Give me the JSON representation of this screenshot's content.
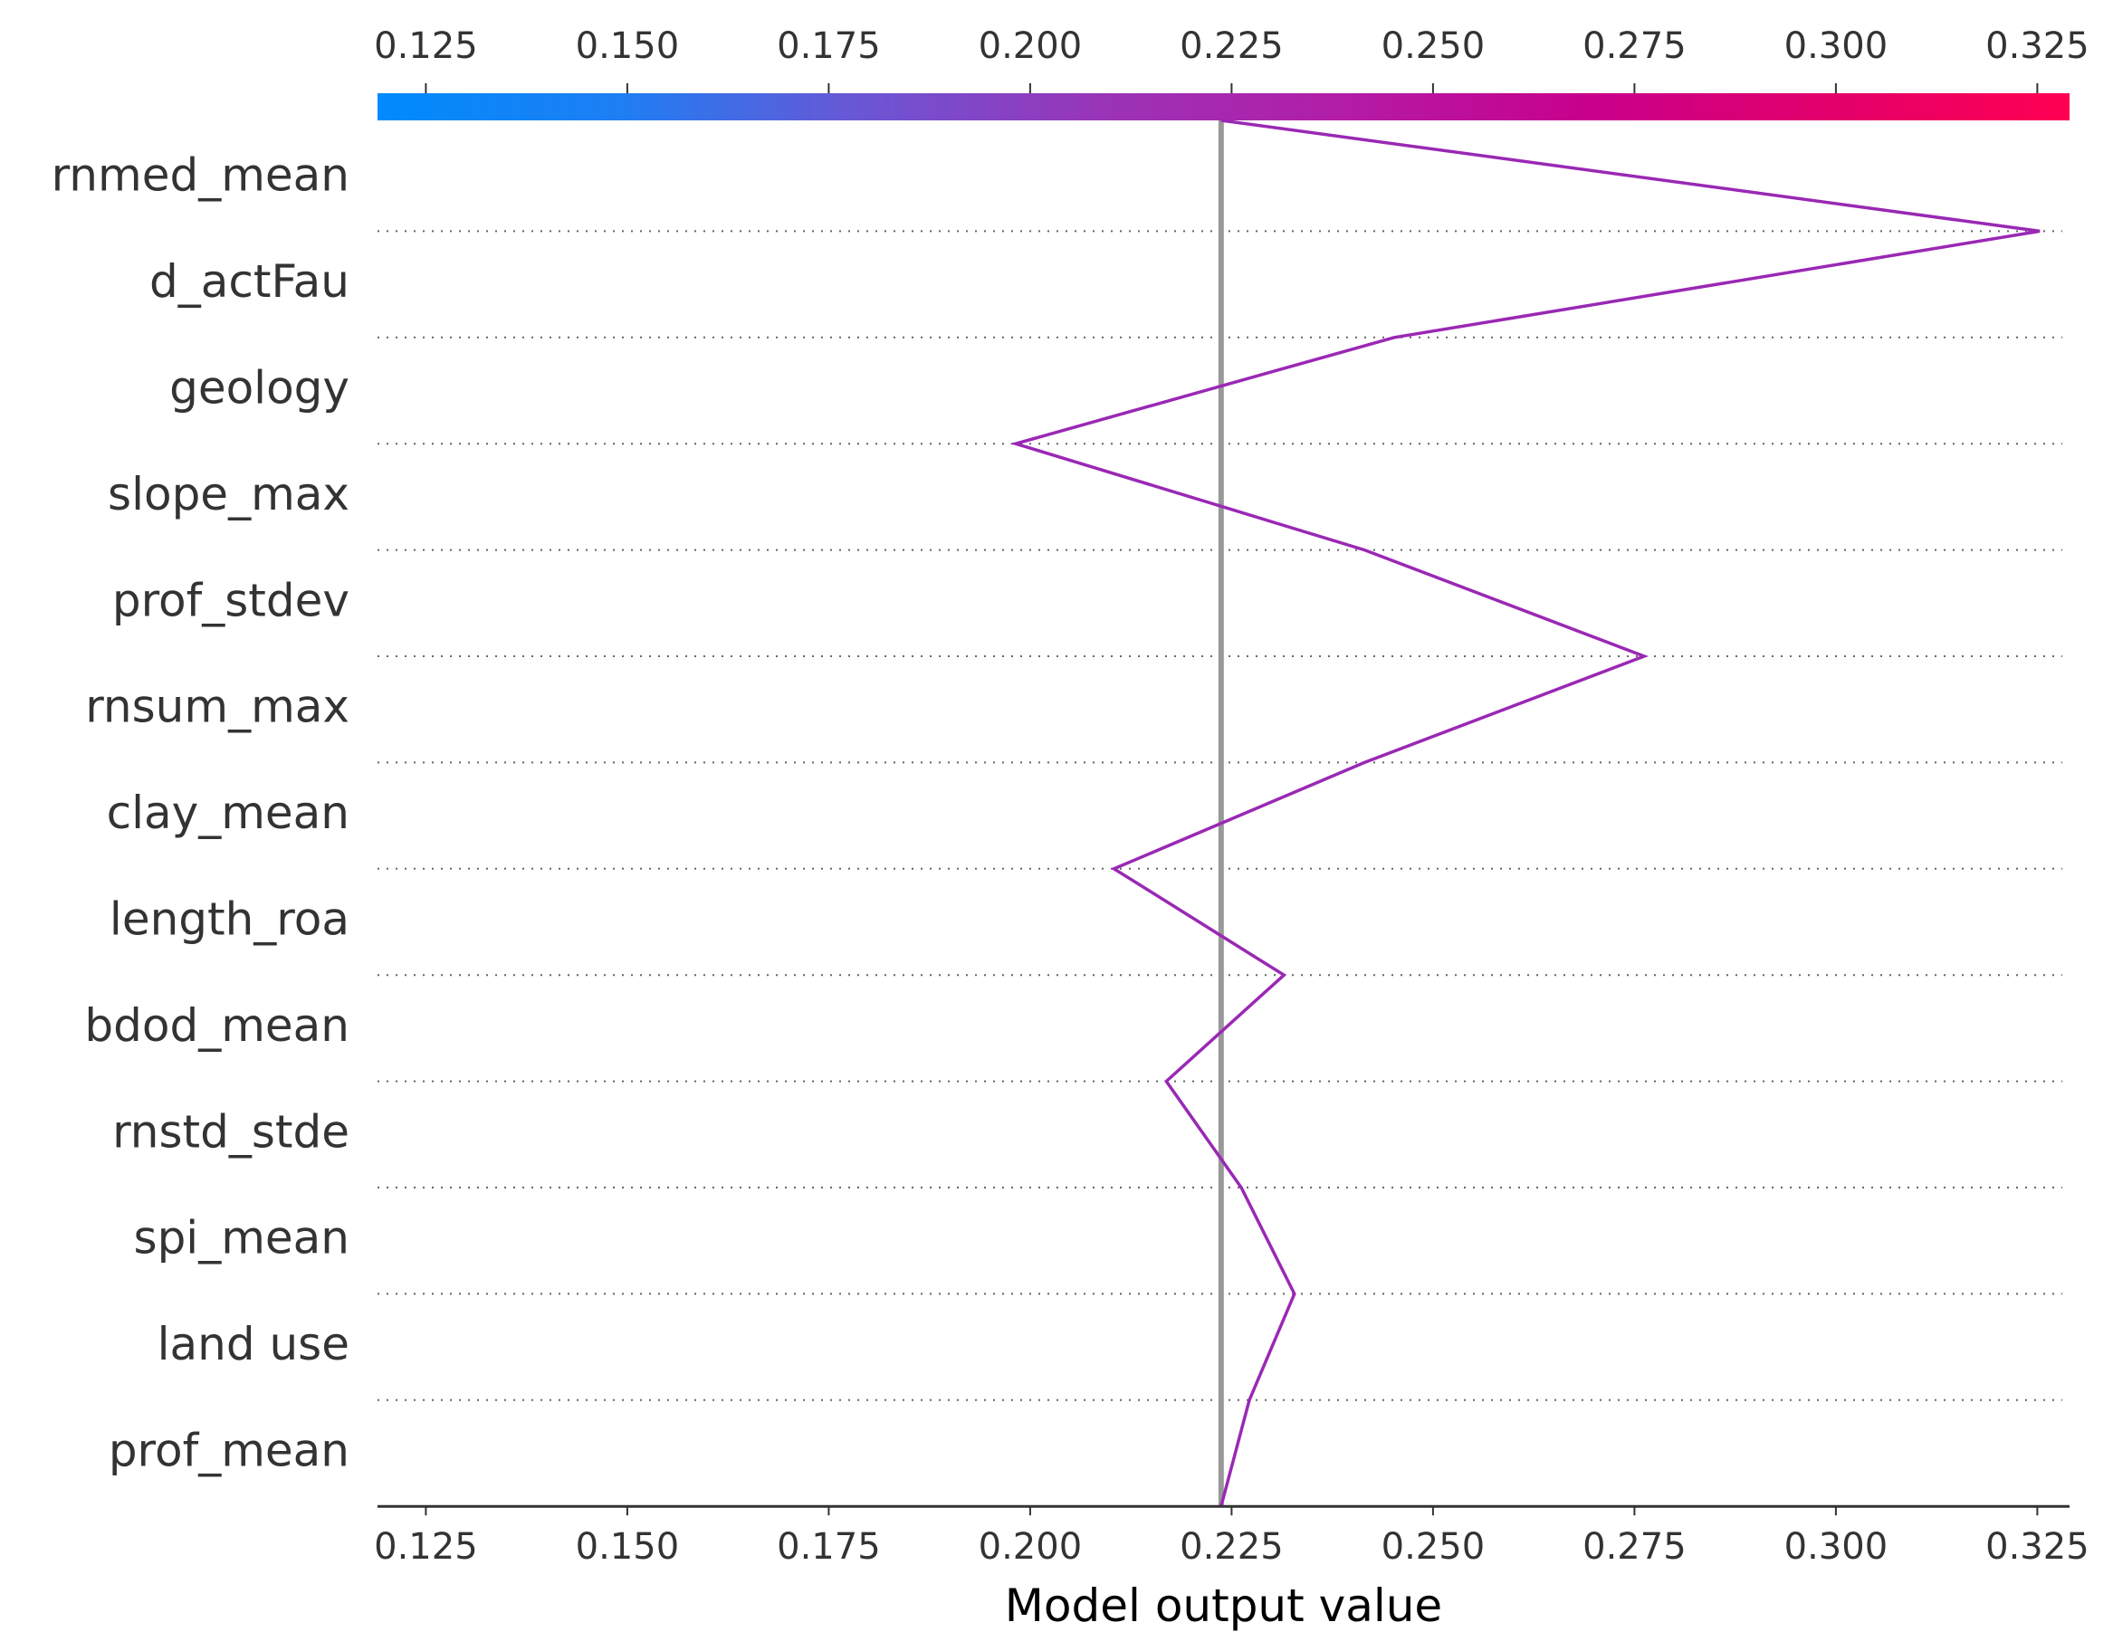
{
  "chart_data": {
    "type": "line",
    "chart_kind": "shap-decision-plot",
    "xlabel": "Model output value",
    "xlim": [
      0.119,
      0.329
    ],
    "x_ticks": [
      0.125,
      0.15,
      0.175,
      0.2,
      0.225,
      0.25,
      0.275,
      0.3,
      0.325
    ],
    "x_tick_labels": [
      "0.125",
      "0.150",
      "0.175",
      "0.200",
      "0.225",
      "0.250",
      "0.275",
      "0.300",
      "0.325"
    ],
    "base_value": 0.2237,
    "features": [
      "rnmed_mean",
      "d_actFau",
      "geology",
      "slope_max",
      "prof_stdev",
      "rnsum_max",
      "clay_mean",
      "length_roa",
      "bdod_mean",
      "rnstd_stde",
      "spi_mean",
      "land use",
      "prof_mean"
    ],
    "path": [
      {
        "boundary": "top",
        "x": 0.2237
      },
      {
        "boundary": "rnmed_mean | d_actFau",
        "x": 0.3253
      },
      {
        "boundary": "d_actFau | geology",
        "x": 0.2452
      },
      {
        "boundary": "geology | slope_max",
        "x": 0.1982
      },
      {
        "boundary": "slope_max | prof_stdev",
        "x": 0.2415
      },
      {
        "boundary": "prof_stdev | rnsum_max",
        "x": 0.2762
      },
      {
        "boundary": "rnsum_max | clay_mean",
        "x": 0.2415
      },
      {
        "boundary": "clay_mean | length_roa",
        "x": 0.2104
      },
      {
        "boundary": "length_roa | bdod_mean",
        "x": 0.2315
      },
      {
        "boundary": "bdod_mean | rnstd_stde",
        "x": 0.2169
      },
      {
        "boundary": "rnstd_stde | spi_mean",
        "x": 0.2262
      },
      {
        "boundary": "spi_mean | land use",
        "x": 0.2328
      },
      {
        "boundary": "land use | prof_mean",
        "x": 0.2272
      },
      {
        "boundary": "bottom",
        "x": 0.2237
      }
    ],
    "line_color": "#9a28b4",
    "baseline_color": "#999999",
    "colorbar": {
      "stops": [
        "#008bfb",
        "#1e7ef4",
        "#6b56d4",
        "#9a34b7",
        "#b31ca6",
        "#c8008c",
        "#e2006b",
        "#ff0052"
      ]
    },
    "grid": "dotted horizontal separators",
    "legend": "none"
  }
}
